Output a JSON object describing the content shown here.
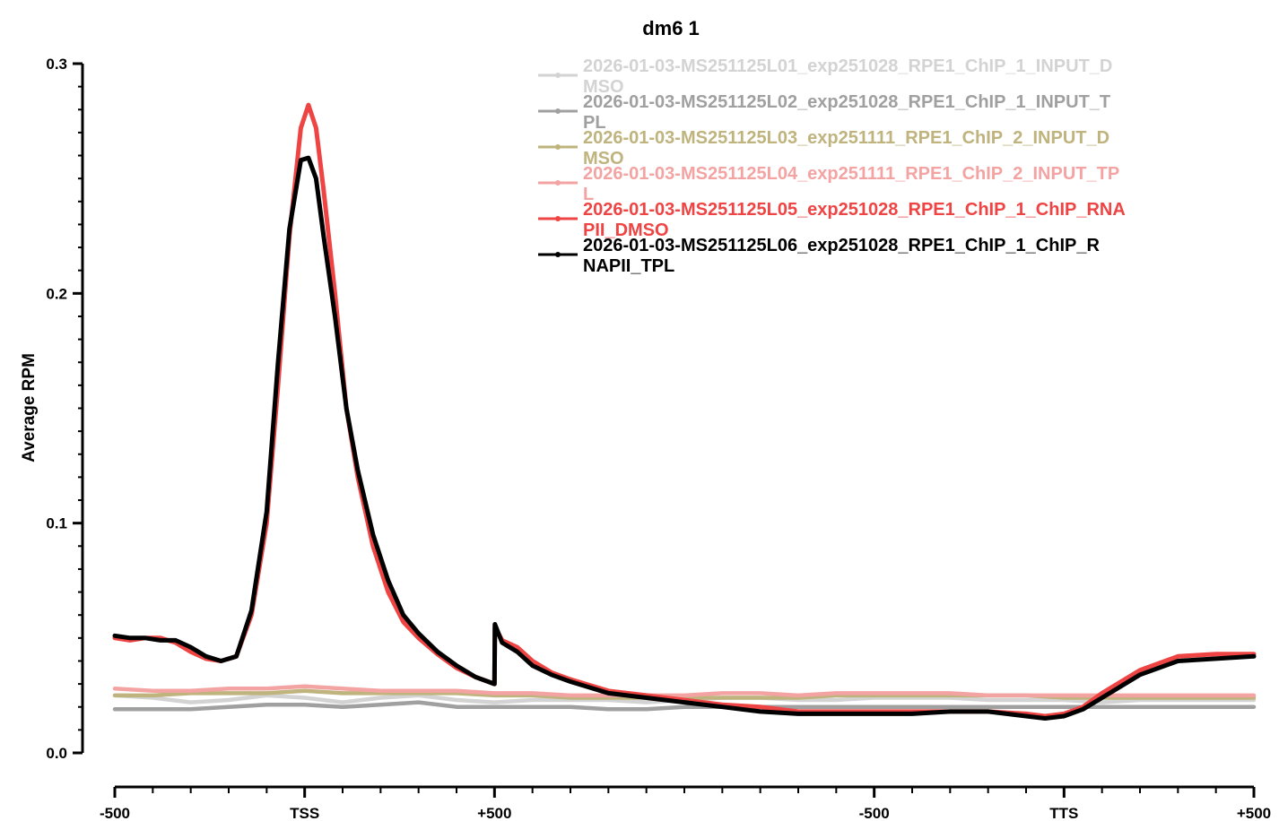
{
  "chart_data": {
    "type": "line",
    "title": "dm6 1",
    "xlabel": "",
    "ylabel": "Average RPM",
    "ylim": [
      0.0,
      0.3
    ],
    "yticks": [
      "0.0",
      "0.1",
      "0.2",
      "0.3"
    ],
    "xticks": [
      {
        "label": "-500",
        "x": 0
      },
      {
        "label": "TSS",
        "x": 500
      },
      {
        "label": "+500",
        "x": 1000
      },
      {
        "label": "-500",
        "x": 2000
      },
      {
        "label": "TTS",
        "x": 2500
      },
      {
        "label": "+500",
        "x": 3000
      }
    ],
    "xlim": [
      0,
      3000
    ],
    "grid": false,
    "legend_position": "top-right",
    "series": [
      {
        "name": "2026-01-03-MS251125L01_exp251028_RPE1_ChIP_1_INPUT_DMSO",
        "legend_lines": [
          "2026-01-03-MS251125L01_exp251028_RPE1_ChIP_1_INPUT_D",
          "MSO"
        ],
        "color": "#d3d3d3",
        "x": [
          0,
          100,
          200,
          300,
          400,
          500,
          600,
          700,
          800,
          900,
          1000,
          1100,
          1200,
          1300,
          1400,
          1500,
          1600,
          1700,
          1800,
          1900,
          2000,
          2100,
          2200,
          2300,
          2400,
          2500,
          2600,
          2700,
          2800,
          2900,
          3000
        ],
        "y": [
          0.025,
          0.024,
          0.022,
          0.023,
          0.025,
          0.024,
          0.022,
          0.024,
          0.025,
          0.023,
          0.022,
          0.023,
          0.023,
          0.023,
          0.022,
          0.023,
          0.024,
          0.024,
          0.023,
          0.023,
          0.024,
          0.024,
          0.024,
          0.023,
          0.023,
          0.023,
          0.022,
          0.023,
          0.023,
          0.023,
          0.023
        ]
      },
      {
        "name": "2026-01-03-MS251125L02_exp251028_RPE1_ChIP_1_INPUT_TPL",
        "legend_lines": [
          "2026-01-03-MS251125L02_exp251028_RPE1_ChIP_1_INPUT_T",
          "PL"
        ],
        "color": "#a0a0a0",
        "x": [
          0,
          100,
          200,
          300,
          400,
          500,
          600,
          700,
          800,
          900,
          1000,
          1100,
          1200,
          1300,
          1400,
          1500,
          1600,
          1700,
          1800,
          1900,
          2000,
          2100,
          2200,
          2300,
          2400,
          2500,
          2600,
          2700,
          2800,
          2900,
          3000
        ],
        "y": [
          0.019,
          0.019,
          0.019,
          0.02,
          0.021,
          0.021,
          0.02,
          0.021,
          0.022,
          0.02,
          0.02,
          0.02,
          0.02,
          0.019,
          0.019,
          0.02,
          0.02,
          0.02,
          0.02,
          0.02,
          0.02,
          0.02,
          0.02,
          0.02,
          0.02,
          0.02,
          0.02,
          0.02,
          0.02,
          0.02,
          0.02
        ]
      },
      {
        "name": "2026-01-03-MS251125L03_exp251111_RPE1_ChIP_2_INPUT_DMSO",
        "legend_lines": [
          "2026-01-03-MS251125L03_exp251111_RPE1_ChIP_2_INPUT_D",
          "MSO"
        ],
        "color": "#bfb37e",
        "x": [
          0,
          100,
          200,
          300,
          400,
          500,
          600,
          700,
          800,
          900,
          1000,
          1100,
          1200,
          1300,
          1400,
          1500,
          1600,
          1700,
          1800,
          1900,
          2000,
          2100,
          2200,
          2300,
          2400,
          2500,
          2600,
          2700,
          2800,
          2900,
          3000
        ],
        "y": [
          0.025,
          0.025,
          0.026,
          0.026,
          0.026,
          0.027,
          0.026,
          0.026,
          0.026,
          0.026,
          0.025,
          0.025,
          0.024,
          0.024,
          0.024,
          0.024,
          0.024,
          0.024,
          0.024,
          0.025,
          0.025,
          0.025,
          0.025,
          0.025,
          0.025,
          0.024,
          0.024,
          0.024,
          0.024,
          0.024,
          0.024
        ]
      },
      {
        "name": "2026-01-03-MS251125L04_exp251111_RPE1_ChIP_2_INPUT_TPL",
        "legend_lines": [
          "2026-01-03-MS251125L04_exp251111_RPE1_ChIP_2_INPUT_TP",
          "L"
        ],
        "color": "#f4a3a3",
        "x": [
          0,
          100,
          200,
          300,
          400,
          500,
          600,
          700,
          800,
          900,
          1000,
          1100,
          1200,
          1300,
          1400,
          1500,
          1600,
          1700,
          1800,
          1900,
          2000,
          2100,
          2200,
          2300,
          2400,
          2500,
          2600,
          2700,
          2800,
          2900,
          3000
        ],
        "y": [
          0.028,
          0.027,
          0.027,
          0.028,
          0.028,
          0.029,
          0.028,
          0.027,
          0.027,
          0.027,
          0.026,
          0.026,
          0.025,
          0.025,
          0.025,
          0.025,
          0.026,
          0.026,
          0.025,
          0.026,
          0.026,
          0.026,
          0.026,
          0.025,
          0.025,
          0.025,
          0.025,
          0.025,
          0.025,
          0.025,
          0.025
        ]
      },
      {
        "name": "2026-01-03-MS251125L05_exp251028_RPE1_ChIP_1_ChIP_RNAPII_DMSO",
        "legend_lines": [
          "2026-01-03-MS251125L05_exp251028_RPE1_ChIP_1_ChIP_RNA",
          "PII_DMSO"
        ],
        "color": "#ee4444",
        "x": [
          0,
          40,
          80,
          120,
          160,
          200,
          240,
          280,
          320,
          360,
          400,
          430,
          460,
          490,
          510,
          530,
          550,
          580,
          610,
          640,
          680,
          720,
          760,
          800,
          850,
          900,
          950,
          1000,
          1001,
          1020,
          1060,
          1100,
          1150,
          1200,
          1300,
          1400,
          1500,
          1600,
          1700,
          1800,
          1900,
          2000,
          2100,
          2200,
          2300,
          2400,
          2450,
          2500,
          2550,
          2600,
          2700,
          2800,
          2900,
          3000
        ],
        "y": [
          0.05,
          0.049,
          0.05,
          0.05,
          0.048,
          0.044,
          0.041,
          0.04,
          0.042,
          0.06,
          0.1,
          0.16,
          0.225,
          0.272,
          0.282,
          0.272,
          0.245,
          0.2,
          0.15,
          0.12,
          0.09,
          0.07,
          0.057,
          0.05,
          0.043,
          0.037,
          0.033,
          0.03,
          0.055,
          0.049,
          0.046,
          0.04,
          0.035,
          0.032,
          0.027,
          0.025,
          0.023,
          0.021,
          0.02,
          0.018,
          0.018,
          0.018,
          0.018,
          0.018,
          0.018,
          0.017,
          0.016,
          0.017,
          0.02,
          0.026,
          0.036,
          0.042,
          0.043,
          0.043
        ]
      },
      {
        "name": "2026-01-03-MS251125L06_exp251028_RPE1_ChIP_1_ChIP_RNAPII_TPL",
        "legend_lines": [
          "2026-01-03-MS251125L06_exp251028_RPE1_ChIP_1_ChIP_R",
          "NAPII_TPL"
        ],
        "color": "#000000",
        "x": [
          0,
          40,
          80,
          120,
          160,
          200,
          240,
          280,
          320,
          360,
          400,
          430,
          460,
          490,
          510,
          530,
          550,
          580,
          610,
          640,
          680,
          720,
          760,
          800,
          850,
          900,
          950,
          1000,
          1001,
          1020,
          1060,
          1100,
          1150,
          1200,
          1300,
          1400,
          1500,
          1600,
          1700,
          1800,
          1900,
          2000,
          2100,
          2200,
          2300,
          2400,
          2450,
          2500,
          2550,
          2600,
          2700,
          2800,
          2900,
          3000
        ],
        "y": [
          0.051,
          0.05,
          0.05,
          0.049,
          0.049,
          0.046,
          0.042,
          0.04,
          0.042,
          0.062,
          0.105,
          0.17,
          0.228,
          0.258,
          0.259,
          0.25,
          0.225,
          0.19,
          0.15,
          0.123,
          0.095,
          0.075,
          0.06,
          0.052,
          0.044,
          0.038,
          0.033,
          0.03,
          0.056,
          0.048,
          0.044,
          0.038,
          0.034,
          0.031,
          0.026,
          0.024,
          0.022,
          0.02,
          0.018,
          0.017,
          0.017,
          0.017,
          0.017,
          0.018,
          0.018,
          0.016,
          0.015,
          0.016,
          0.019,
          0.024,
          0.034,
          0.04,
          0.041,
          0.042
        ]
      }
    ]
  }
}
